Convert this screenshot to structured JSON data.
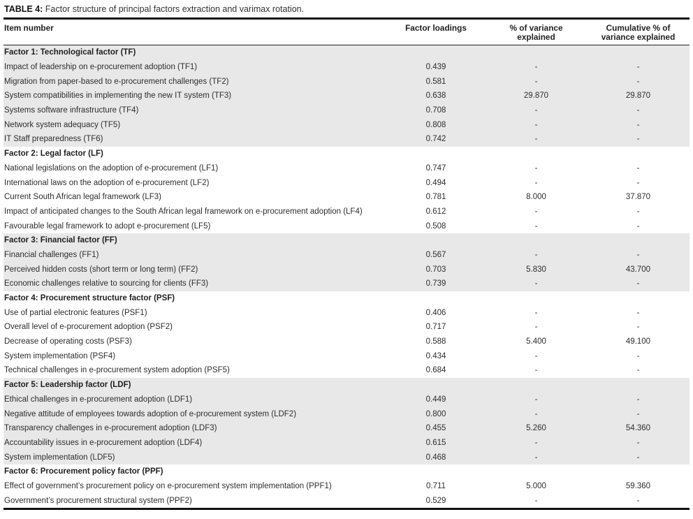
{
  "caption": {
    "label": "TABLE 4:",
    "text": " Factor structure of principal factors extraction and varimax rotation."
  },
  "table": {
    "columns": [
      "Item number",
      "Factor loadings",
      "% of variance explained",
      "Cumulative % of variance explained"
    ],
    "sections": [
      {
        "header": "Factor 1: Technological factor (TF)",
        "shaded": true,
        "rows": [
          {
            "item": "Impact of leadership on e-procurement adoption (TF1)",
            "loading": "0.439",
            "variance": "-",
            "cumulative": "-"
          },
          {
            "item": "Migration from paper-based to e-procurement challenges (TF2)",
            "loading": "0.581",
            "variance": "-",
            "cumulative": "-"
          },
          {
            "item": "System compatibilities in implementing the new IT system (TF3)",
            "loading": "0.638",
            "variance": "29.870",
            "cumulative": "29.870"
          },
          {
            "item": "Systems software infrastructure (TF4)",
            "loading": "0.708",
            "variance": "-",
            "cumulative": "-"
          },
          {
            "item": "Network system adequacy (TF5)",
            "loading": "0.808",
            "variance": "-",
            "cumulative": "-"
          },
          {
            "item": "IT Staff preparedness (TF6)",
            "loading": "0.742",
            "variance": "-",
            "cumulative": "-"
          }
        ]
      },
      {
        "header": "Factor 2: Legal factor (LF)",
        "shaded": false,
        "rows": [
          {
            "item": "National legislations on the adoption of e-procurement (LF1)",
            "loading": "0.747",
            "variance": "-",
            "cumulative": "-"
          },
          {
            "item": "International laws on the adoption of e-procurement (LF2)",
            "loading": "0.494",
            "variance": "-",
            "cumulative": "-"
          },
          {
            "item": "Current South African legal framework (LF3)",
            "loading": "0.781",
            "variance": "8.000",
            "cumulative": "37.870"
          },
          {
            "item": "Impact of anticipated changes to the South African legal framework on e-procurement adoption (LF4)",
            "loading": "0.612",
            "variance": "-",
            "cumulative": "-"
          },
          {
            "item": "Favourable legal framework to adopt e-procurement (LF5)",
            "loading": "0.508",
            "variance": "-",
            "cumulative": "-"
          }
        ]
      },
      {
        "header": "Factor 3: Financial factor (FF)",
        "shaded": true,
        "rows": [
          {
            "item": "Financial challenges (FF1)",
            "loading": "0.567",
            "variance": "-",
            "cumulative": "-"
          },
          {
            "item": "Perceived hidden costs (short term or long term) (FF2)",
            "loading": "0.703",
            "variance": "5.830",
            "cumulative": "43.700"
          },
          {
            "item": "Economic challenges relative to sourcing for clients (FF3)",
            "loading": "0.739",
            "variance": "-",
            "cumulative": "-"
          }
        ]
      },
      {
        "header": "Factor 4: Procurement structure factor (PSF)",
        "shaded": false,
        "rows": [
          {
            "item": "Use of partial electronic features (PSF1)",
            "loading": "0.406",
            "variance": "-",
            "cumulative": "-"
          },
          {
            "item": "Overall level of e-procurement adoption (PSF2)",
            "loading": "0.717",
            "variance": "-",
            "cumulative": "-"
          },
          {
            "item": "Decrease of operating costs (PSF3)",
            "loading": "0.588",
            "variance": "5.400",
            "cumulative": "49.100"
          },
          {
            "item": "System implementation (PSF4)",
            "loading": "0.434",
            "variance": "-",
            "cumulative": "-"
          },
          {
            "item": "Technical challenges in e-procurement system adoption (PSF5)",
            "loading": "0.684",
            "variance": "-",
            "cumulative": "-"
          }
        ]
      },
      {
        "header": "Factor 5: Leadership factor (LDF)",
        "shaded": true,
        "rows": [
          {
            "item": "Ethical challenges in e-procurement adoption (LDF1)",
            "loading": "0.449",
            "variance": "-",
            "cumulative": "-"
          },
          {
            "item": "Negative attitude of employees towards adoption of e-procurement system (LDF2)",
            "loading": "0.800",
            "variance": "-",
            "cumulative": "-"
          },
          {
            "item": "Transparency challenges in e-procurement adoption (LDF3)",
            "loading": "0.455",
            "variance": "5.260",
            "cumulative": "54.360"
          },
          {
            "item": "Accountability issues in e-procurement adoption (LDF4)",
            "loading": "0.615",
            "variance": "-",
            "cumulative": "-"
          },
          {
            "item": "System implementation (LDF5)",
            "loading": "0.468",
            "variance": "-",
            "cumulative": "-"
          }
        ]
      },
      {
        "header": "Factor 6: Procurement policy factor (PPF)",
        "shaded": false,
        "rows": [
          {
            "item": "Effect of government’s procurement policy on e-procurement system implementation (PPF1)",
            "loading": "0.711",
            "variance": "5.000",
            "cumulative": "59.360"
          },
          {
            "item": "Government’s procurement structural system (PPF2)",
            "loading": "0.529",
            "variance": "-",
            "cumulative": "-"
          }
        ]
      }
    ]
  },
  "colors": {
    "shaded_row_bg": "#e8e8e8",
    "rule_color": "#111111",
    "text_color": "#2d2d2d"
  }
}
